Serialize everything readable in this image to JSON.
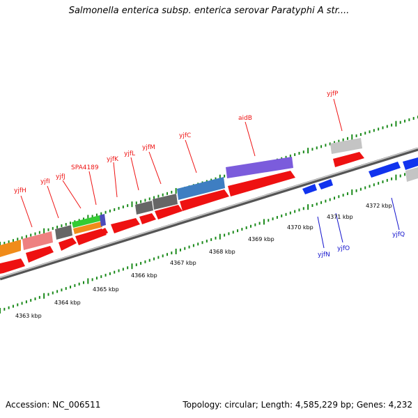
{
  "title": "Salmonella enterica subsp. enterica serovar Paratyphi A str....",
  "footer": {
    "accession": "Accession: NC_006511",
    "summary": "Topology: circular; Length: 4,585,229 bp; Genes: 4,232"
  },
  "colors": {
    "backbone": "#888888",
    "tick": "#1a8a1a",
    "forward_gene": "#ee1111",
    "reverse_gene": "#1133ee",
    "forward_label": "#ee1111",
    "reverse_label": "#1111cc"
  },
  "map": {
    "axis_labels": [
      "4363 kbp",
      "4364 kbp",
      "4365 kbp",
      "4366 kbp",
      "4367 kbp",
      "4368 kbp",
      "4369 kbp",
      "4370 kbp",
      "4371 kbp",
      "4372 kbp"
    ],
    "forward_gene_labels": [
      "yjfH",
      "yjfI",
      "yjfJ",
      "SPA4189",
      "yjfK",
      "yjfL",
      "yjfM",
      "yjfC",
      "aidB",
      "yjfP"
    ],
    "reverse_gene_labels": [
      "yjfN",
      "yjfO",
      "yjfQ"
    ]
  }
}
